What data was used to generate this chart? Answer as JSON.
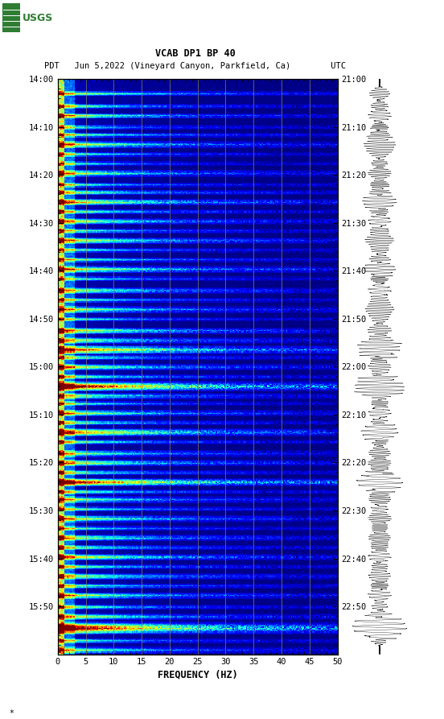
{
  "title_line1": "VCAB DP1 BP 40",
  "title_line2": "PDT   Jun 5,2022 (Vineyard Canyon, Parkfield, Ca)        UTC",
  "xlabel": "FREQUENCY (HZ)",
  "left_time_labels": [
    "14:00",
    "14:10",
    "14:20",
    "14:30",
    "14:40",
    "14:50",
    "15:00",
    "15:10",
    "15:20",
    "15:30",
    "15:40",
    "15:50"
  ],
  "right_time_labels": [
    "21:00",
    "21:10",
    "21:20",
    "21:30",
    "21:40",
    "21:50",
    "22:00",
    "22:10",
    "22:20",
    "22:30",
    "22:40",
    "22:50"
  ],
  "freq_ticks": [
    0,
    5,
    10,
    15,
    20,
    25,
    30,
    35,
    40,
    45,
    50
  ],
  "freq_gridlines": [
    5,
    10,
    15,
    20,
    25,
    30,
    35,
    40,
    45
  ],
  "colormap": "jet",
  "background_color": "#ffffff",
  "fig_width": 5.52,
  "fig_height": 8.93,
  "n_freq": 250,
  "n_time": 600,
  "seed": 42,
  "vline_color": "#8B8B60",
  "vline_alpha": 0.8,
  "vline_lw": 0.6
}
